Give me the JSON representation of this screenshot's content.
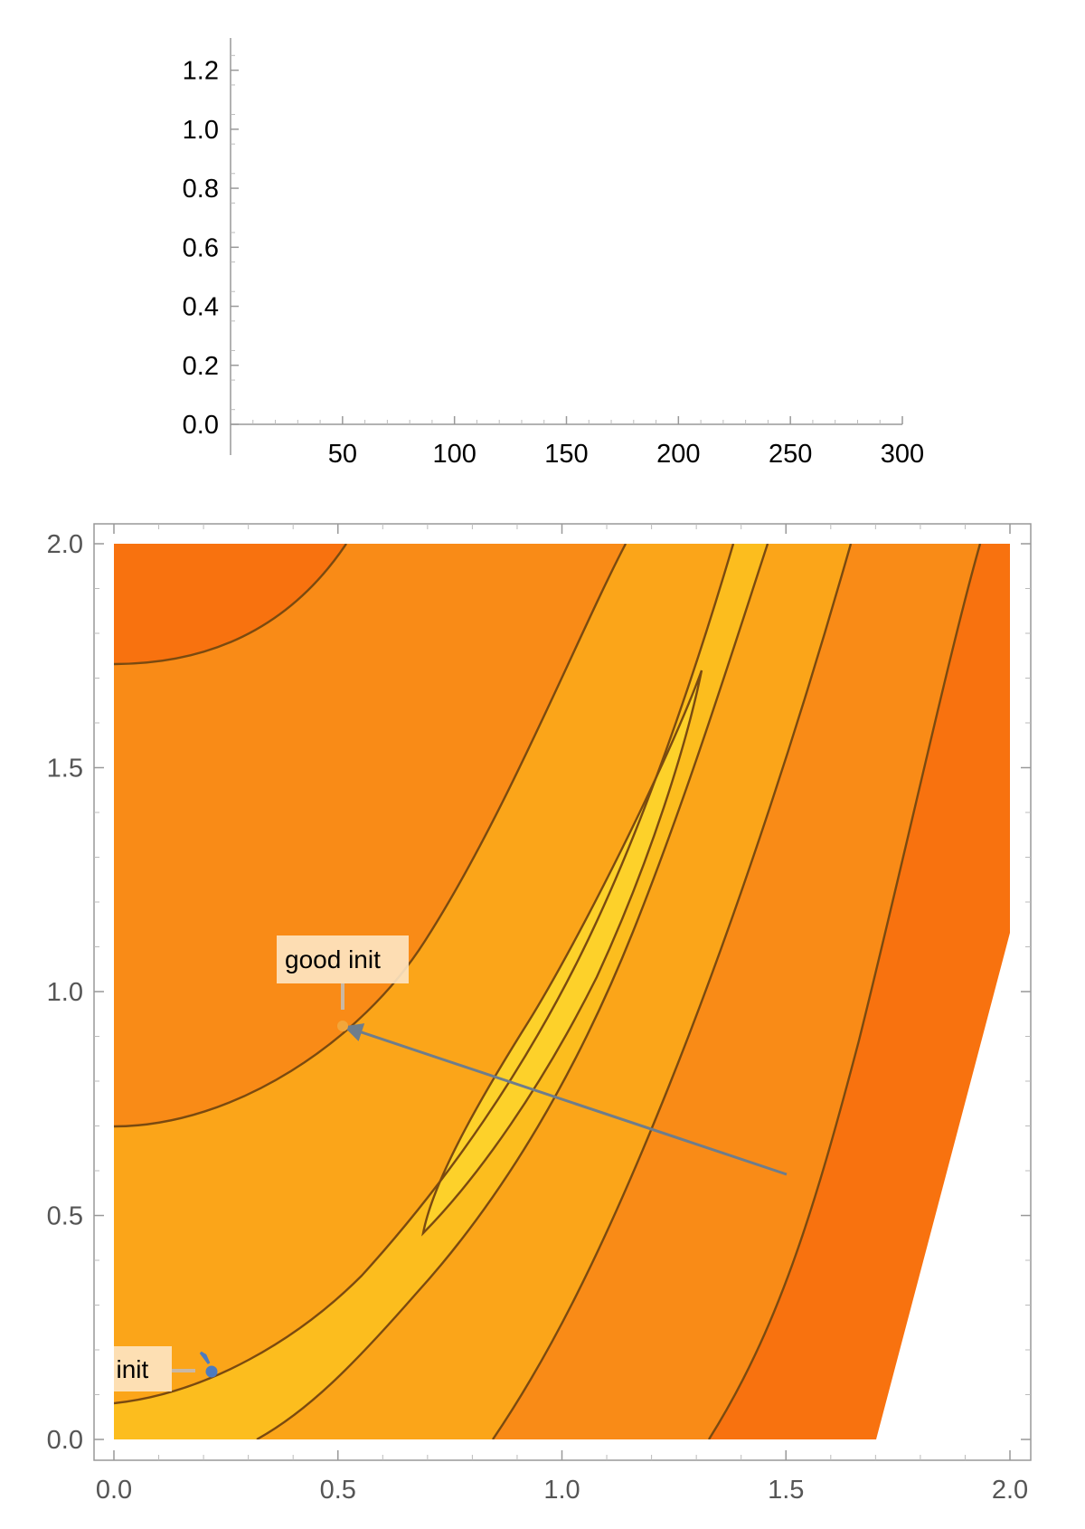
{
  "chart_data": [
    {
      "type": "line",
      "title": "",
      "xlabel": "",
      "ylabel": "",
      "xlim": [
        0,
        300
      ],
      "ylim": [
        0,
        1.3
      ],
      "x_ticks": [
        50,
        100,
        150,
        200,
        250,
        300
      ],
      "x_tick_labels": [
        "50",
        "100",
        "150",
        "200",
        "250",
        "300"
      ],
      "y_ticks": [
        0.0,
        0.2,
        0.4,
        0.6,
        0.8,
        1.0,
        1.2
      ],
      "y_tick_labels": [
        "0.0",
        "0.2",
        "0.4",
        "0.6",
        "0.8",
        "1.0",
        "1.2"
      ],
      "series": [],
      "grid": false
    },
    {
      "type": "contour",
      "title": "",
      "xlabel": "",
      "ylabel": "",
      "xlim": [
        0,
        2
      ],
      "ylim": [
        0,
        2
      ],
      "x_ticks": [
        0.0,
        0.5,
        1.0,
        1.5,
        2.0
      ],
      "x_tick_labels": [
        "0.0",
        "0.5",
        "1.0",
        "1.5",
        "2.0"
      ],
      "y_ticks": [
        0.0,
        0.5,
        1.0,
        1.5,
        2.0
      ],
      "y_tick_labels": [
        "0.0",
        "0.5",
        "1.0",
        "1.5",
        "2.0"
      ],
      "grid": false,
      "colors": {
        "level_darkest": "#f8720f",
        "level_dark": "#f98b17",
        "level_mid": "#fba519",
        "level_light": "#fcbd1e",
        "level_lightest": "#fdd12a",
        "contour_line": "#7a4a10",
        "bad_init_point": "#4d7bbf",
        "good_init_point": "#f2a63b",
        "trajectory_arrow": "#6e7d8c",
        "label_box": "#fde6c4"
      },
      "annotations": [
        {
          "label": "good init",
          "x": 0.51,
          "y": 0.93
        },
        {
          "label": "bad init",
          "x": 0.22,
          "y": 0.17
        }
      ],
      "trajectory": {
        "from": [
          1.5,
          0.6
        ],
        "to": [
          0.51,
          0.93
        ]
      }
    }
  ]
}
